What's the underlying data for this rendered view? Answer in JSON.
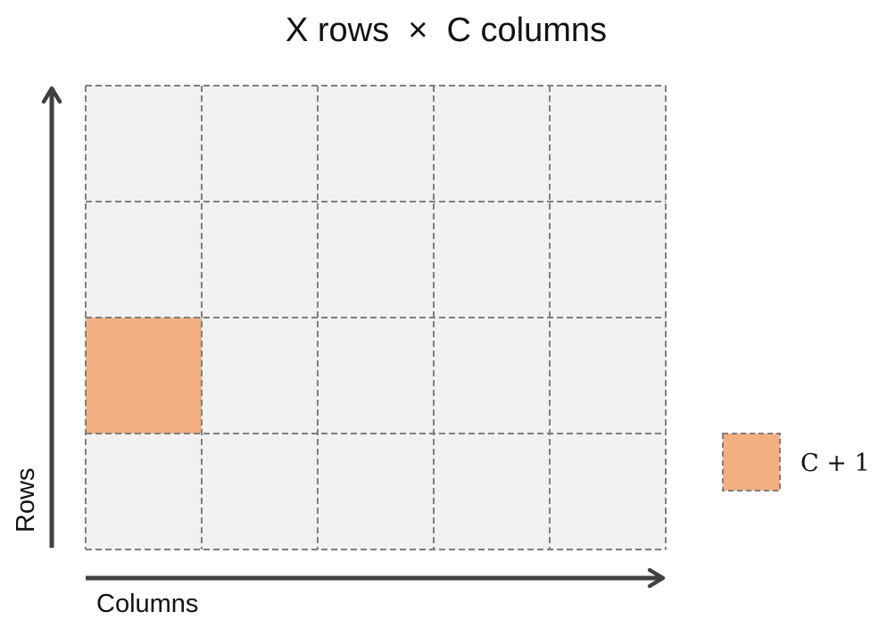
{
  "diagram": {
    "title": "X rows  ×  C columns",
    "rows_label": "Rows",
    "columns_label": "Columns",
    "grid": {
      "rows": 4,
      "columns": 5,
      "highlighted_cell": {
        "row": 3,
        "column": 1
      }
    },
    "legend": {
      "label": "C + 1"
    },
    "colors": {
      "cell_fill": "#f1f1f1",
      "cell_border": "#7f7f7f",
      "highlight_fill": "#f2b082",
      "axis": "#404040",
      "text": "#111111"
    }
  }
}
